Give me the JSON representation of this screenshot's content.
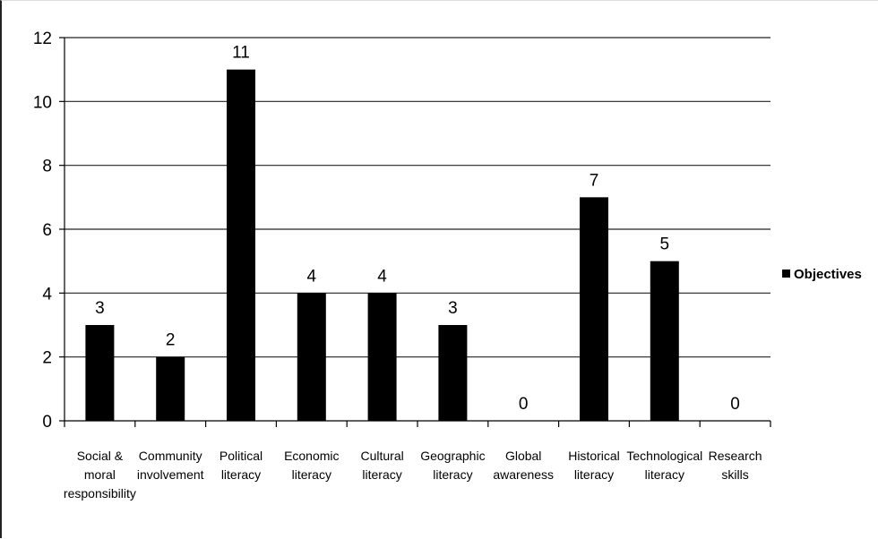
{
  "chart_data": {
    "type": "bar",
    "categories": [
      "Social & moral responsibility",
      "Community involvement",
      "Political literacy",
      "Economic literacy",
      "Cultural literacy",
      "Geographic literacy",
      "Global awareness",
      "Historical literacy",
      "Technological literacy",
      "Research skills"
    ],
    "category_lines": [
      [
        "Social &",
        "moral",
        "responsibility"
      ],
      [
        "Community",
        "involvement"
      ],
      [
        "Political",
        "literacy"
      ],
      [
        "Economic",
        "literacy"
      ],
      [
        "Cultural",
        "literacy"
      ],
      [
        "Geographic",
        "literacy"
      ],
      [
        "Global",
        "awareness"
      ],
      [
        "Historical",
        "literacy"
      ],
      [
        "Technological",
        "literacy"
      ],
      [
        "Research",
        "skills"
      ]
    ],
    "series": [
      {
        "name": "Objectives",
        "values": [
          3,
          2,
          11,
          4,
          4,
          3,
          0,
          7,
          5,
          0
        ],
        "color": "#000000"
      }
    ],
    "data_labels": [
      "3",
      "2",
      "11",
      "4",
      "4",
      "3",
      "0",
      "7",
      "5",
      "0"
    ],
    "y_ticks": [
      "0",
      "2",
      "4",
      "6",
      "8",
      "10",
      "12"
    ],
    "ylim": [
      0,
      12
    ],
    "grid": true,
    "legend": {
      "position": "right",
      "entries": [
        "Objectives"
      ]
    },
    "title": "",
    "xlabel": "",
    "ylabel": ""
  }
}
